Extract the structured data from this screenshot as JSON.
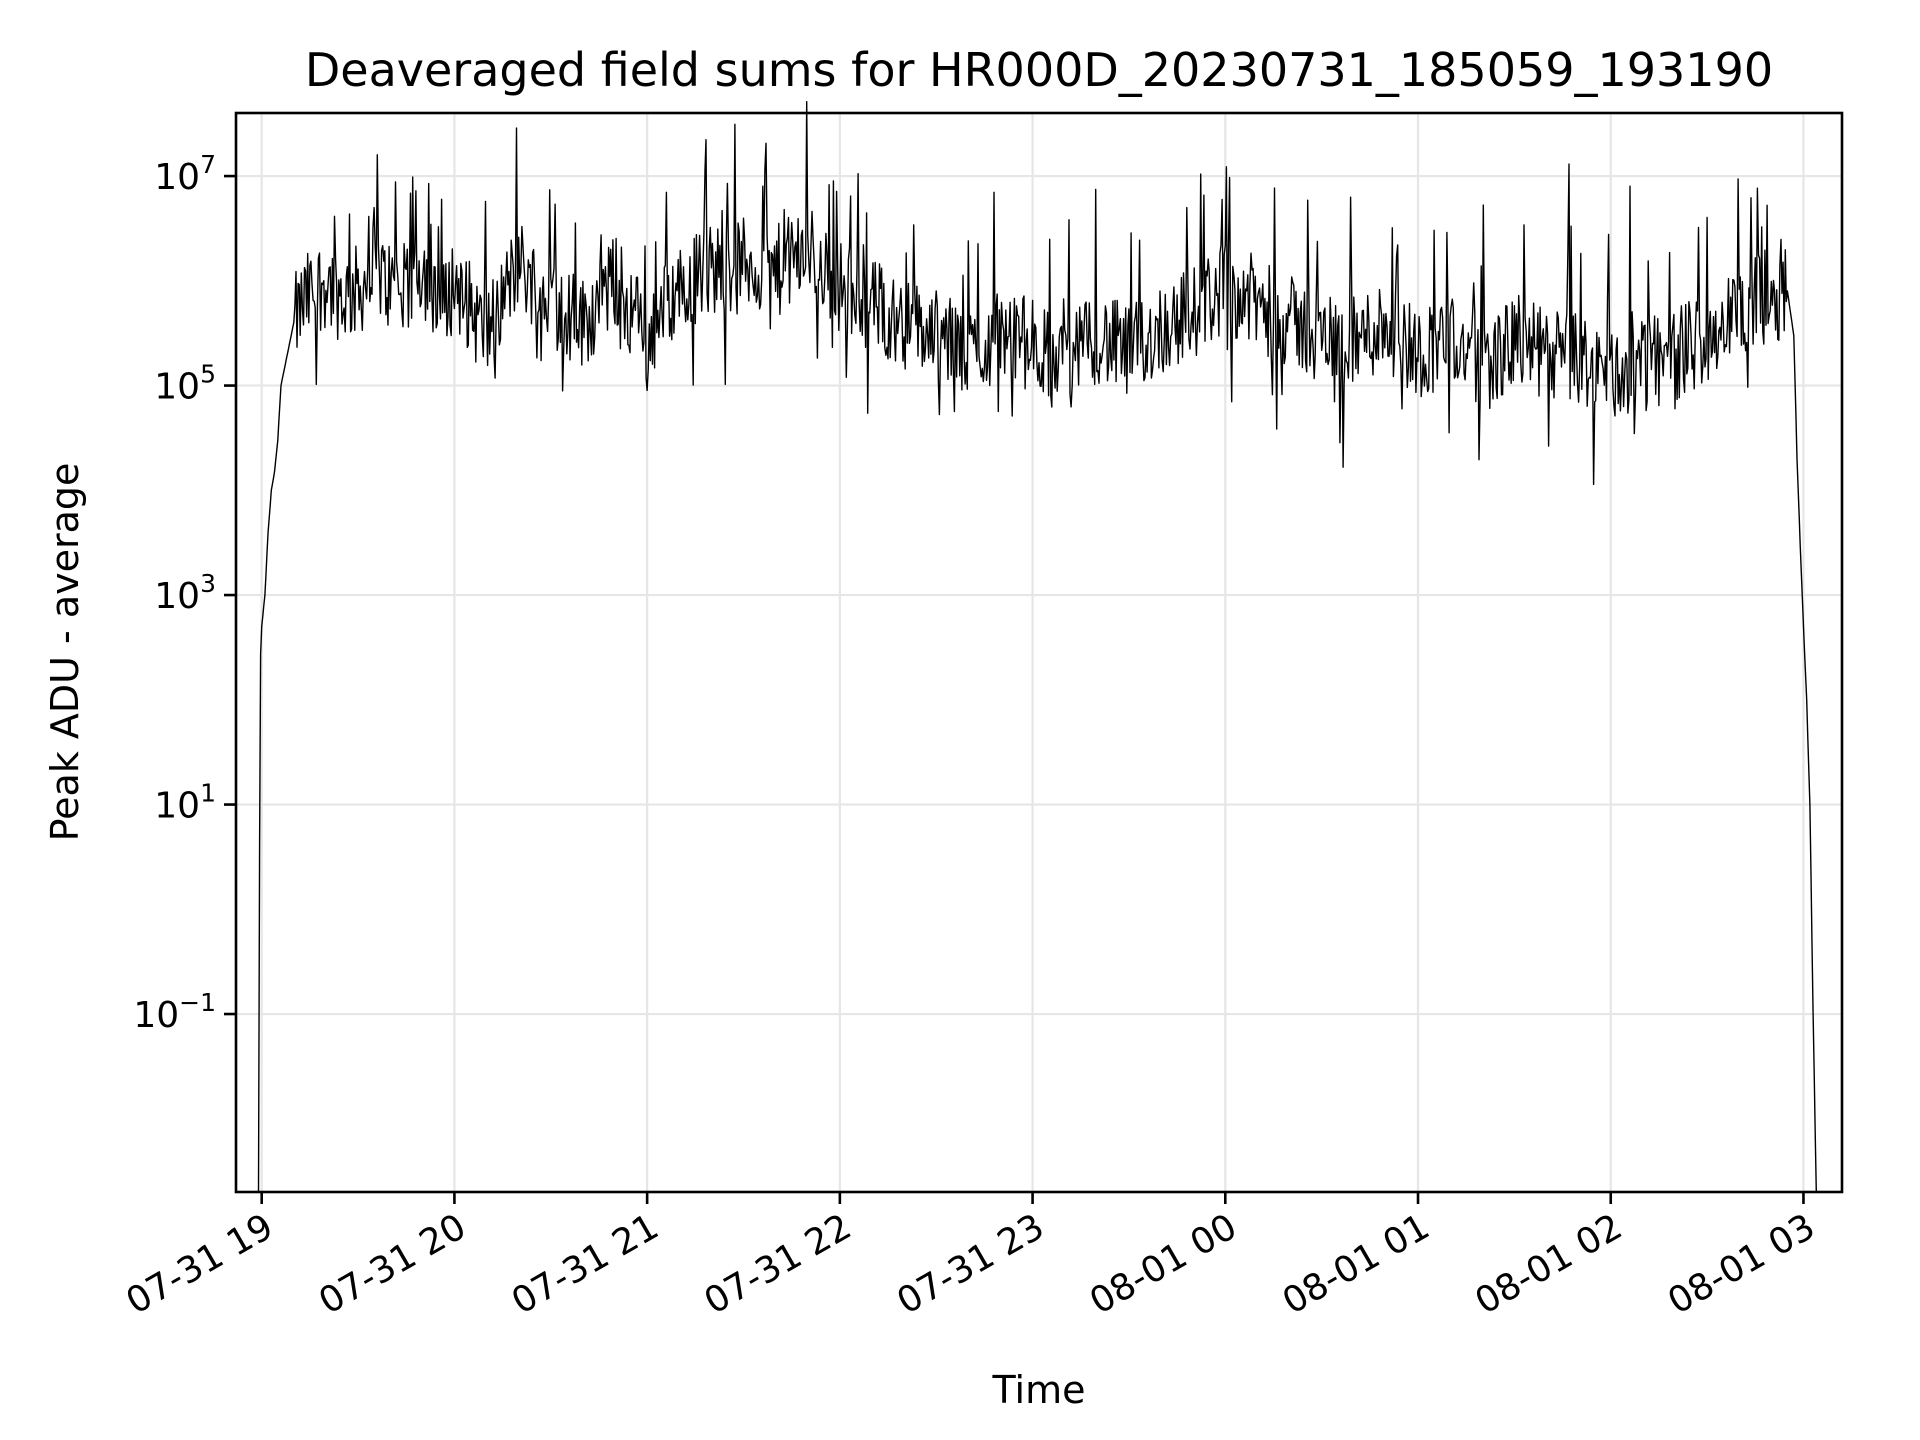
{
  "chart_data": {
    "type": "line",
    "title": "Deaveraged field sums for HR000D_20230731_185059_193190",
    "xlabel": "Time",
    "ylabel": "Peak ADU - average",
    "x_scale": "time",
    "y_scale": "log",
    "xlim": [
      "2023-07-31T18:52:00",
      "2023-08-01T03:12:00"
    ],
    "ylim": [
      0.002,
      40000000
    ],
    "grid": true,
    "legend": "none",
    "line_color": "#000000",
    "x_ticks": [
      {
        "value": "2023-07-31T19:00:00",
        "label": "07-31 19"
      },
      {
        "value": "2023-07-31T20:00:00",
        "label": "07-31 20"
      },
      {
        "value": "2023-07-31T21:00:00",
        "label": "07-31 21"
      },
      {
        "value": "2023-07-31T22:00:00",
        "label": "07-31 22"
      },
      {
        "value": "2023-07-31T23:00:00",
        "label": "07-31 23"
      },
      {
        "value": "2023-08-01T00:00:00",
        "label": "08-01 00"
      },
      {
        "value": "2023-08-01T01:00:00",
        "label": "08-01 01"
      },
      {
        "value": "2023-08-01T02:00:00",
        "label": "08-01 02"
      },
      {
        "value": "2023-08-01T03:00:00",
        "label": "08-01 03"
      }
    ],
    "y_ticks": [
      {
        "value": 10000000,
        "base": "10",
        "exp": "7"
      },
      {
        "value": 100000,
        "base": "10",
        "exp": "5"
      },
      {
        "value": 1000,
        "base": "10",
        "exp": "3"
      },
      {
        "value": 10,
        "base": "10",
        "exp": "1"
      },
      {
        "value": 0.1,
        "base": "10",
        "exp": "−1"
      }
    ],
    "series": [
      {
        "x": [
          "2023-07-31T18:59:00",
          "2023-07-31T18:59:30",
          "2023-07-31T19:00:00",
          "2023-07-31T19:01:00",
          "2023-07-31T19:02:00",
          "2023-07-31T19:03:00",
          "2023-07-31T19:04:00",
          "2023-07-31T19:05:00",
          "2023-07-31T19:06:00",
          "2023-07-31T19:08:00",
          "2023-07-31T19:10:00",
          "2023-07-31T19:13:00",
          "2023-07-31T19:16:00",
          "2023-07-31T19:20:00",
          "2023-07-31T19:25:00",
          "2023-07-31T19:30:00",
          "2023-07-31T19:35:00",
          "2023-07-31T19:40:00",
          "2023-07-31T19:45:00",
          "2023-07-31T19:50:00",
          "2023-07-31T19:55:00",
          "2023-07-31T20:00:00",
          "2023-07-31T20:10:00",
          "2023-07-31T20:20:00",
          "2023-07-31T20:30:00",
          "2023-07-31T20:40:00",
          "2023-07-31T20:50:00",
          "2023-07-31T21:00:00",
          "2023-07-31T21:10:00",
          "2023-07-31T21:20:00",
          "2023-07-31T21:30:00",
          "2023-07-31T21:40:00",
          "2023-07-31T21:50:00",
          "2023-07-31T22:00:00",
          "2023-07-31T22:10:00",
          "2023-07-31T22:20:00",
          "2023-07-31T22:30:00",
          "2023-07-31T22:40:00",
          "2023-07-31T22:50:00",
          "2023-07-31T23:00:00",
          "2023-07-31T23:10:00",
          "2023-07-31T23:20:00",
          "2023-07-31T23:30:00",
          "2023-07-31T23:40:00",
          "2023-07-31T23:50:00",
          "2023-08-01T00:00:00",
          "2023-08-01T00:10:00",
          "2023-08-01T00:20:00",
          "2023-08-01T00:30:00",
          "2023-08-01T00:40:00",
          "2023-08-01T00:50:00",
          "2023-08-01T01:00:00",
          "2023-08-01T01:10:00",
          "2023-08-01T01:20:00",
          "2023-08-01T01:30:00",
          "2023-08-01T01:40:00",
          "2023-08-01T01:50:00",
          "2023-08-01T02:00:00",
          "2023-08-01T02:10:00",
          "2023-08-01T02:20:00",
          "2023-08-01T02:30:00",
          "2023-08-01T02:40:00",
          "2023-08-01T02:48:00",
          "2023-08-01T02:55:00",
          "2023-08-01T02:57:00",
          "2023-08-01T02:58:00",
          "2023-08-01T02:59:00",
          "2023-08-01T03:00:00",
          "2023-08-01T03:01:00",
          "2023-08-01T03:02:00",
          "2023-08-01T03:03:00",
          "2023-08-01T03:04:00"
        ],
        "y": [
          0.002,
          200,
          500,
          1000,
          4000,
          10000,
          15000,
          30000,
          100000,
          200000,
          400000,
          600000,
          800000,
          1000000,
          700000,
          800000,
          1200000,
          900000,
          700000,
          1500000,
          400000,
          1000000,
          300000,
          1500000,
          600000,
          400000,
          1000000,
          300000,
          900000,
          1300000,
          1500000,
          1200000,
          2000000,
          900000,
          600000,
          400000,
          300000,
          200000,
          300000,
          250000,
          150000,
          300000,
          200000,
          350000,
          500000,
          900000,
          600000,
          400000,
          300000,
          250000,
          400000,
          200000,
          300000,
          150000,
          250000,
          200000,
          180000,
          120000,
          150000,
          200000,
          300000,
          500000,
          700000,
          800000,
          300000,
          20000,
          3000,
          500,
          100,
          10,
          0.1,
          0.002
        ],
        "spikes": [
          {
            "x": "2023-07-31T19:35:00",
            "y": 5000000
          },
          {
            "x": "2023-07-31T19:56:00",
            "y": 6000000
          },
          {
            "x": "2023-07-31T21:06:00",
            "y": 7000000
          },
          {
            "x": "2023-07-31T21:36:00",
            "y": 8000000
          },
          {
            "x": "2023-07-31T21:58:00",
            "y": 9000000
          },
          {
            "x": "2023-07-31T22:48:00",
            "y": 7000000
          },
          {
            "x": "2023-07-31T23:48:00",
            "y": 5000000
          },
          {
            "x": "2023-08-01T01:47:00",
            "y": 13000000
          },
          {
            "x": "2023-08-01T02:06:00",
            "y": 8000000
          }
        ],
        "spike_dips": [
          {
            "x": "2023-07-31T21:00:00",
            "y": 90000
          },
          {
            "x": "2023-07-31T22:02:00",
            "y": 120000
          },
          {
            "x": "2023-07-31T23:05:00",
            "y": 80000
          },
          {
            "x": "2023-08-01T00:02:00",
            "y": 70000
          },
          {
            "x": "2023-08-01T00:55:00",
            "y": 60000
          },
          {
            "x": "2023-08-01T01:55:00",
            "y": 70000
          },
          {
            "x": "2023-08-01T02:20:00",
            "y": 60000
          }
        ]
      }
    ]
  }
}
